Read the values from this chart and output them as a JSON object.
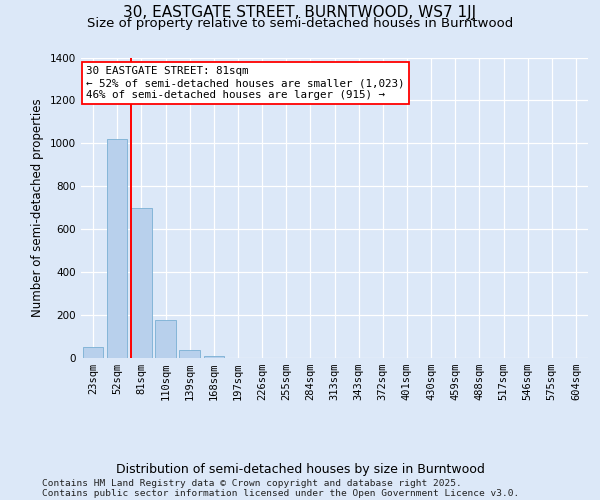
{
  "title": "30, EASTGATE STREET, BURNTWOOD, WS7 1JJ",
  "subtitle": "Size of property relative to semi-detached houses in Burntwood",
  "xlabel": "Distribution of semi-detached houses by size in Burntwood",
  "ylabel": "Number of semi-detached properties",
  "categories": [
    "23sqm",
    "52sqm",
    "81sqm",
    "110sqm",
    "139sqm",
    "168sqm",
    "197sqm",
    "226sqm",
    "255sqm",
    "284sqm",
    "313sqm",
    "343sqm",
    "372sqm",
    "401sqm",
    "430sqm",
    "459sqm",
    "488sqm",
    "517sqm",
    "546sqm",
    "575sqm",
    "604sqm"
  ],
  "values": [
    50,
    1020,
    700,
    175,
    35,
    5,
    0,
    0,
    0,
    0,
    0,
    0,
    0,
    0,
    0,
    0,
    0,
    0,
    0,
    0,
    0
  ],
  "bar_color": "#b8d0ec",
  "bar_edge_color": "#7aafd4",
  "red_line_index": 2,
  "annotation_line1": "30 EASTGATE STREET: 81sqm",
  "annotation_line2": "← 52% of semi-detached houses are smaller (1,023)",
  "annotation_line3": "46% of semi-detached houses are larger (915) →",
  "ylim": [
    0,
    1400
  ],
  "yticks": [
    0,
    200,
    400,
    600,
    800,
    1000,
    1200,
    1400
  ],
  "bg_color": "#dce8f8",
  "title_fontsize": 11,
  "subtitle_fontsize": 9.5,
  "ylabel_fontsize": 8.5,
  "xlabel_fontsize": 9,
  "tick_fontsize": 7.5,
  "annotation_fontsize": 7.8,
  "footer_fontsize": 6.8,
  "footer_line1": "Contains HM Land Registry data © Crown copyright and database right 2025.",
  "footer_line2": "Contains public sector information licensed under the Open Government Licence v3.0."
}
